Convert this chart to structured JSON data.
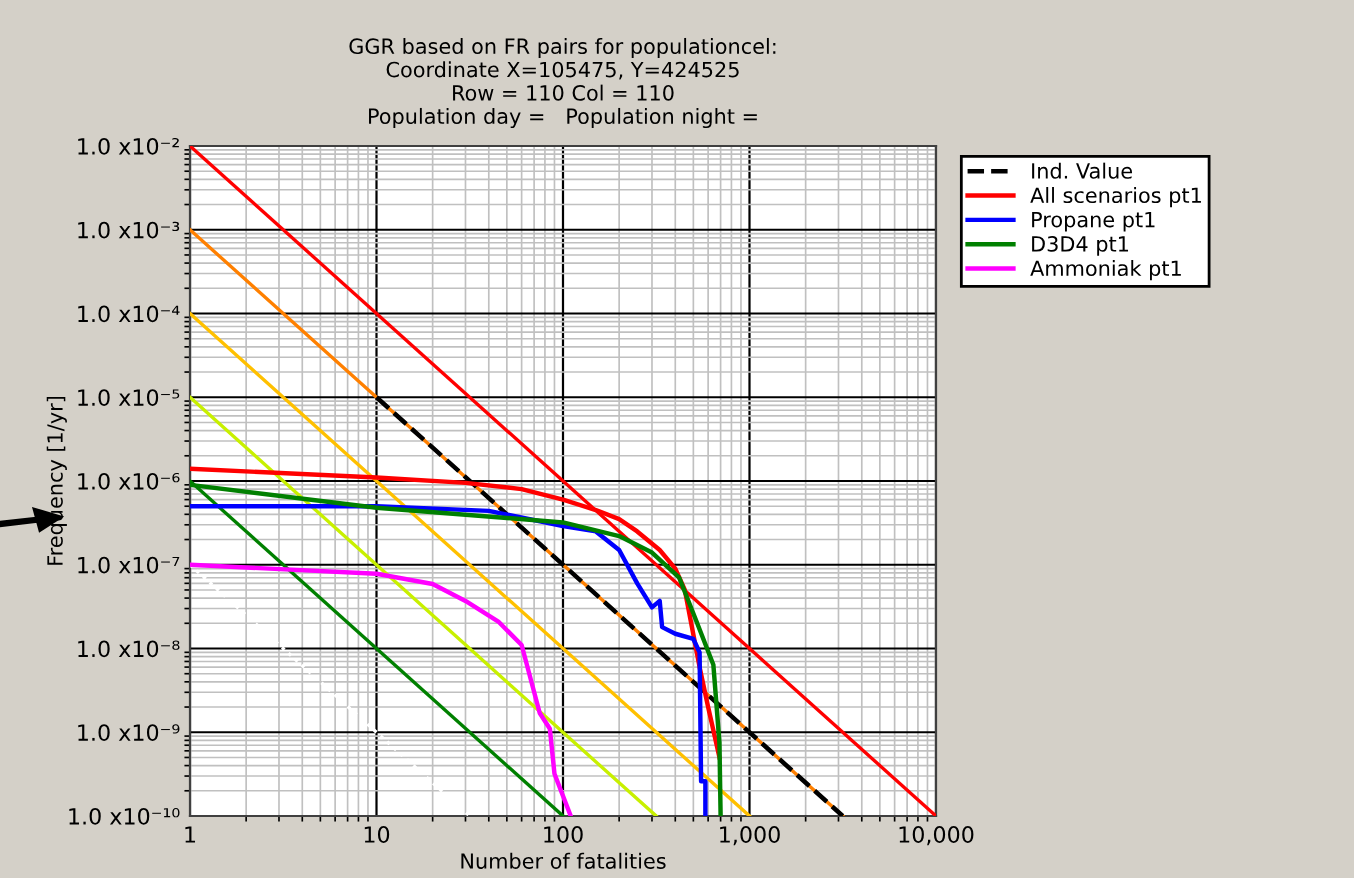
{
  "chart_data": {
    "type": "line",
    "title": "GGR based on FR pairs for populationcel:\nCoordinate X=105475, Y=424525\nRow = 110 Col = 110\nPopulation day =   Population night =",
    "xlabel": "Number of fatalities",
    "ylabel": "Frequency [1/yr]",
    "log": "xy",
    "grid": true,
    "legend": "top right",
    "marker": "none",
    "line_style": "solid",
    "xlim": [
      1,
      10000
    ],
    "xticks": [
      {
        "value": 1,
        "label": "1"
      },
      {
        "value": 10,
        "label": "10"
      },
      {
        "value": 100,
        "label": "100"
      },
      {
        "value": 1000,
        "label": "1,000"
      },
      {
        "value": 10000,
        "label": "10,000"
      }
    ],
    "ylim": [
      1e-10,
      0.01
    ],
    "yticks": [
      {
        "value": 1e-10,
        "label": "1.0 x10⁻¹⁰"
      },
      {
        "value": 1e-09,
        "label": "1.0 x10⁻⁹"
      },
      {
        "value": 1e-08,
        "label": "1.0 x10⁻⁸"
      },
      {
        "value": 1e-07,
        "label": "1.0 x10⁻⁷"
      },
      {
        "value": 1e-06,
        "label": "1.0 x10⁻⁶"
      },
      {
        "value": 1e-05,
        "label": "1.0 x10⁻⁵"
      },
      {
        "value": 0.0001,
        "label": "1.0 x10⁻⁴"
      },
      {
        "value": 0.001,
        "label": "1.0 x10⁻³"
      },
      {
        "value": 0.01,
        "label": "1.0 x10⁻²"
      }
    ],
    "series": [
      {
        "color": "#ff0000",
        "x": [
          1,
          10000
        ],
        "values": [
          0.01,
          1e-10
        ]
      },
      {
        "color": "#ff8000",
        "x": [
          1,
          3162
        ],
        "values": [
          0.001,
          1e-10
        ]
      },
      {
        "color": "#ffc000",
        "x": [
          1,
          1000
        ],
        "values": [
          0.0001,
          1e-10
        ]
      },
      {
        "color": "#c8f000",
        "x": [
          1,
          316
        ],
        "values": [
          1e-05,
          1e-10
        ]
      },
      {
        "color": "#008000",
        "x": [
          1,
          100
        ],
        "values": [
          1e-06,
          1e-10
        ]
      },
      {
        "color": "#ffffff",
        "line_style": "dotted",
        "x": [
          1,
          31.6
        ],
        "values": [
          1e-07,
          1e-10
        ]
      },
      {
        "name": "Ind. Value",
        "color": "#000000",
        "line_style": "dashed",
        "x": [
          10,
          3162
        ],
        "values": [
          1e-05,
          1e-10
        ]
      },
      {
        "name": "All scenarios pt1",
        "color": "#ff0000",
        "x": [
          1,
          10,
          30,
          60,
          100,
          150,
          200,
          250,
          330,
          400,
          450,
          540,
          600,
          690
        ],
        "values": [
          1.4e-06,
          1.1e-06,
          9.5e-07,
          8e-07,
          6e-07,
          4.5e-07,
          3.5e-07,
          2.5e-07,
          1.5e-07,
          9e-08,
          5e-08,
          6e-09,
          2e-09,
          5e-10
        ]
      },
      {
        "name": "Propane pt1",
        "color": "#0000ff",
        "x": [
          1,
          10,
          40,
          100,
          150,
          200,
          250,
          300,
          330,
          340,
          400,
          500,
          540,
          550,
          580,
          580
        ],
        "values": [
          5e-07,
          5e-07,
          4.4e-07,
          2.9e-07,
          2.5e-07,
          1.5e-07,
          6e-08,
          3.1e-08,
          3.7e-08,
          1.8e-08,
          1.5e-08,
          1.3e-08,
          9e-09,
          2.6e-10,
          2.6e-10,
          1e-10
        ]
      },
      {
        "name": "D3D4 pt1",
        "color": "#008000",
        "x": [
          1,
          10,
          100,
          200,
          300,
          420,
          520,
          640,
          690,
          700
        ],
        "values": [
          9e-07,
          4.8e-07,
          3.2e-07,
          2.2e-07,
          1.4e-07,
          7e-08,
          2.1e-08,
          6.4e-09,
          7.5e-10,
          1e-10
        ]
      },
      {
        "name": "Ammoniak pt1",
        "color": "#ff00ff",
        "x": [
          1,
          10,
          20,
          30,
          45,
          60,
          75,
          85,
          90,
          110
        ],
        "values": [
          1e-07,
          7.8e-08,
          5.9e-08,
          3.7e-08,
          2.1e-08,
          1.1e-08,
          1.7e-09,
          1.1e-09,
          3.2e-10,
          1e-10
        ]
      }
    ]
  }
}
